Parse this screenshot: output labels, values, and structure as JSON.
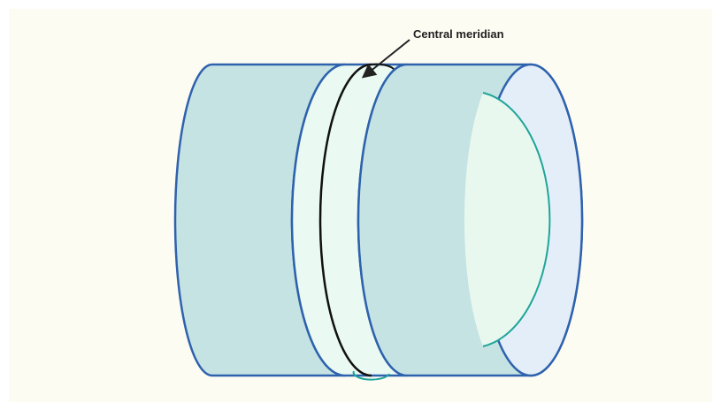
{
  "labels": {
    "central_meridian": "Central meridian"
  }
}
